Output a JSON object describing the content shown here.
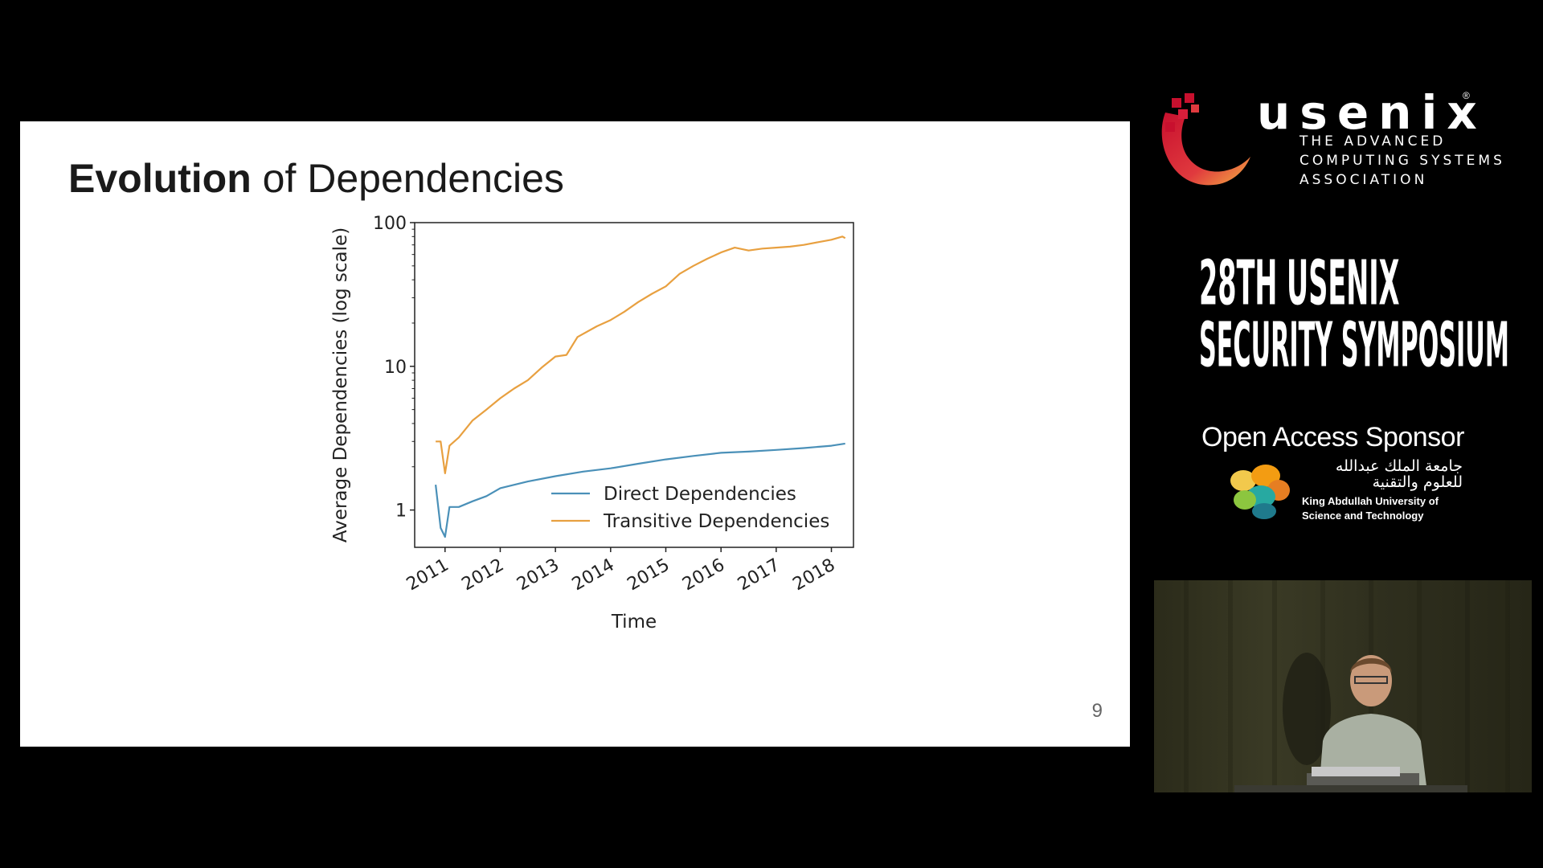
{
  "slide": {
    "title_bold": "Evolution",
    "title_rest": " of Dependencies",
    "page_number": "9"
  },
  "chart_data": {
    "type": "line",
    "title": "",
    "xlabel": "Time",
    "ylabel": "Average Dependencies (log scale)",
    "yscale": "log",
    "ylim": [
      0.55,
      100
    ],
    "xlim": [
      2010.45,
      2018.4
    ],
    "yticks": [
      1,
      10,
      100
    ],
    "ytick_labels": [
      "1",
      "10",
      "100"
    ],
    "xticks": [
      2011,
      2012,
      2013,
      2014,
      2015,
      2016,
      2017,
      2018
    ],
    "xtick_labels": [
      "2011",
      "2012",
      "2013",
      "2014",
      "2015",
      "2016",
      "2017",
      "2018"
    ],
    "grid": false,
    "legend_position": "lower-right",
    "series": [
      {
        "name": "Direct Dependencies",
        "color": "#4a90b8",
        "x": [
          2010.83,
          2010.92,
          2011.0,
          2011.08,
          2011.25,
          2011.5,
          2011.75,
          2012.0,
          2012.5,
          2013.0,
          2013.5,
          2014.0,
          2014.5,
          2015.0,
          2015.5,
          2016.0,
          2016.5,
          2017.0,
          2017.5,
          2018.0,
          2018.25
        ],
        "y": [
          1.5,
          0.75,
          0.65,
          1.05,
          1.05,
          1.15,
          1.25,
          1.42,
          1.58,
          1.72,
          1.85,
          1.95,
          2.1,
          2.25,
          2.38,
          2.5,
          2.55,
          2.62,
          2.7,
          2.8,
          2.9
        ]
      },
      {
        "name": "Transitive Dependencies",
        "color": "#e8a040",
        "x": [
          2010.83,
          2010.92,
          2011.0,
          2011.08,
          2011.25,
          2011.5,
          2011.75,
          2012.0,
          2012.25,
          2012.5,
          2012.75,
          2013.0,
          2013.2,
          2013.4,
          2013.75,
          2014.0,
          2014.25,
          2014.5,
          2014.75,
          2015.0,
          2015.25,
          2015.5,
          2015.75,
          2016.0,
          2016.25,
          2016.5,
          2016.75,
          2017.0,
          2017.25,
          2017.5,
          2017.75,
          2018.0,
          2018.2,
          2018.25
        ],
        "y": [
          3.0,
          3.0,
          1.8,
          2.8,
          3.2,
          4.2,
          5.0,
          6.0,
          7.0,
          8.0,
          9.8,
          11.7,
          12.0,
          16.0,
          19.0,
          21.0,
          24.0,
          28.0,
          32.0,
          36.0,
          44.0,
          50.0,
          56.0,
          62.0,
          67.0,
          64.0,
          66.0,
          67.0,
          68.0,
          70.0,
          73.0,
          76.0,
          80.0,
          78.0
        ]
      }
    ]
  },
  "sidebar": {
    "org_name": "usenix",
    "org_reg": "®",
    "org_tagline_1": "THE ADVANCED",
    "org_tagline_2": "COMPUTING SYSTEMS",
    "org_tagline_3": "ASSOCIATION",
    "event_line_1": "28TH USENIX",
    "event_line_2": "SECURITY SYMPOSIUM",
    "sponsor_label": "Open Access Sponsor",
    "sponsor_arabic_1": "جامعة الملك عبدالله",
    "sponsor_arabic_2": "للعلوم والتقنية",
    "sponsor_english_1": "King Abdullah University of",
    "sponsor_english_2": "Science and Technology"
  }
}
